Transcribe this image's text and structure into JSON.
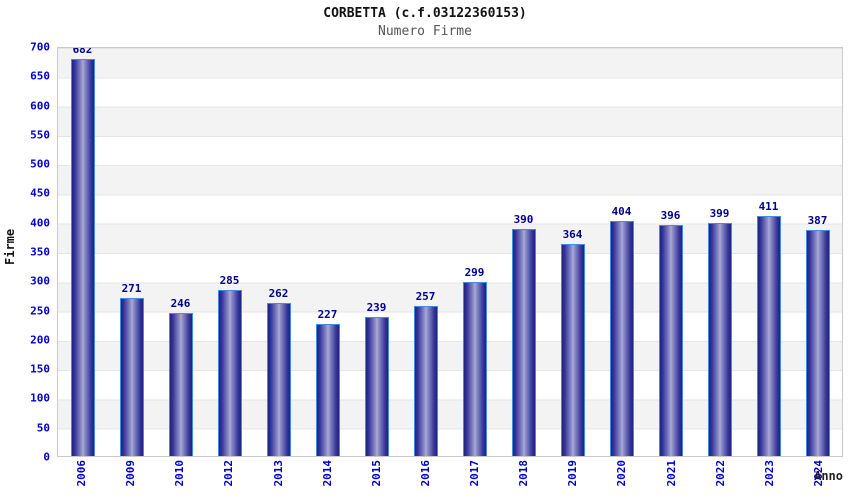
{
  "header": {
    "title": "CORBETTA (c.f.03122360153)",
    "subtitle": "Numero Firme"
  },
  "axes": {
    "y_label": "Firme",
    "x_label": "Anno"
  },
  "chart_data": {
    "type": "bar",
    "title": "CORBETTA (c.f.03122360153)",
    "subtitle": "Numero Firme",
    "xlabel": "Anno",
    "ylabel": "Firme",
    "categories": [
      "2006",
      "2009",
      "2010",
      "2012",
      "2013",
      "2014",
      "2015",
      "2016",
      "2017",
      "2018",
      "2019",
      "2020",
      "2021",
      "2022",
      "2023",
      "2024"
    ],
    "values": [
      682,
      271,
      246,
      285,
      262,
      227,
      239,
      257,
      299,
      390,
      364,
      404,
      396,
      399,
      411,
      387
    ],
    "ylim": [
      0,
      700
    ],
    "y_ticks": [
      0,
      50,
      100,
      150,
      200,
      250,
      300,
      350,
      400,
      450,
      500,
      550,
      600,
      650,
      700
    ],
    "grid": "horizontal alternating bands every 50 units with light gridlines",
    "legend_position": "none",
    "data_labels": true
  },
  "colors": {
    "bar_border": "#3f8ce8",
    "bar_dark": "#23237a",
    "bar_light": "#a9a9d8",
    "tick_label": "#0000cc",
    "value_label": "#00008c",
    "band": "#f3f3f3",
    "gridline": "#e4e4e4",
    "plot_border": "#c9c9c9",
    "title": "#111111",
    "subtitle": "#555555"
  }
}
